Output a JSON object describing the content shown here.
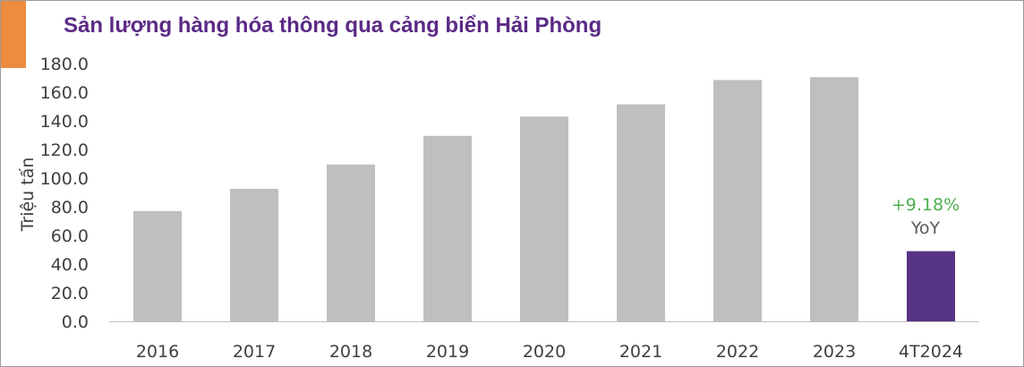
{
  "colors": {
    "accent": "#ED8B3F",
    "title": "#5B2A86",
    "bar": "#BFBFBF",
    "highlight_bar": "#573385",
    "yoy": "#4CAF50",
    "axis": "#BFBFBF",
    "text": "#404040"
  },
  "chart_data": {
    "type": "bar",
    "title": "Sản lượng hàng hóa thông qua cảng biển Hải Phòng",
    "ylabel": "Triệu tấn",
    "xlabel": "",
    "ylim": [
      0,
      180
    ],
    "yticks": [
      "0.0",
      "20.0",
      "40.0",
      "60.0",
      "80.0",
      "100.0",
      "120.0",
      "140.0",
      "160.0",
      "180.0"
    ],
    "categories": [
      "2016",
      "2017",
      "2018",
      "2019",
      "2020",
      "2021",
      "2022",
      "2023",
      "4T2024"
    ],
    "values": [
      77,
      92.5,
      109.5,
      129.5,
      143,
      151.5,
      168.5,
      170.5,
      49
    ],
    "highlight_index": 8,
    "grid": false,
    "annotation": {
      "category": "4T2024",
      "value": "+9.18%",
      "label": "YoY"
    }
  }
}
